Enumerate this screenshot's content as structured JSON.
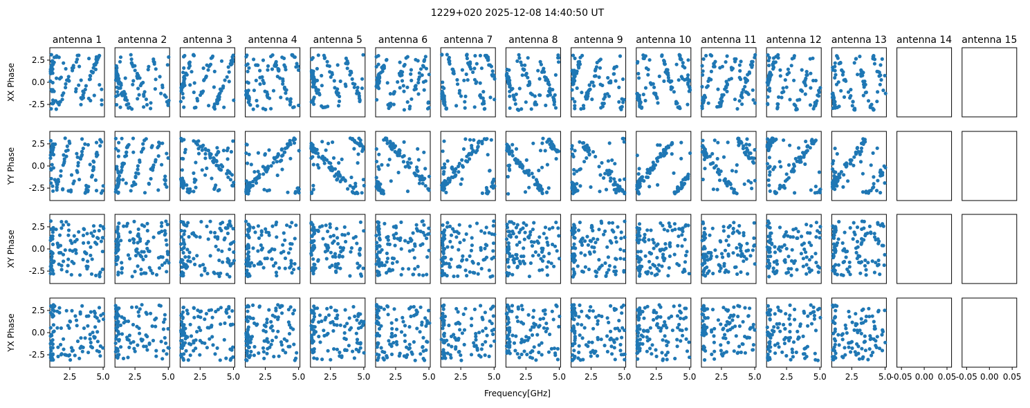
{
  "chart_data": {
    "type": "scatter",
    "title": "1229+020 2025-12-08 14:40:50 UT",
    "xlabel": "Frequency[GHz]",
    "marker_color": "#1f77b4",
    "columns": [
      "antenna 1",
      "antenna 2",
      "antenna 3",
      "antenna 4",
      "antenna 5",
      "antenna 6",
      "antenna 7",
      "antenna 8",
      "antenna 9",
      "antenna 10",
      "antenna 11",
      "antenna 12",
      "antenna 13",
      "antenna 14",
      "antenna 15"
    ],
    "rows": [
      "XX Phase",
      "YY Phase",
      "XY Phase",
      "YX Phase"
    ],
    "xlim": [
      1.0,
      5.1
    ],
    "ylim": [
      -3.9,
      3.9
    ],
    "x_ticks": [
      2.5,
      5.0
    ],
    "x_tick_labels": [
      "2.5",
      "5.0"
    ],
    "y_ticks": [
      2.5,
      0.0,
      -2.5
    ],
    "y_tick_labels": [
      "2.5",
      "0.0",
      "-2.5"
    ],
    "empty_panel_xlim": [
      -0.06,
      0.06
    ],
    "empty_panel_x_ticks": [
      -0.05,
      0.0,
      0.05
    ],
    "empty_panel_x_tick_labels": [
      "-0.05",
      "0.00",
      "0.05"
    ],
    "points_per_panel": 110,
    "phase_range": [
      -3.14159,
      3.14159
    ],
    "freq_range": [
      1.05,
      5.05
    ],
    "note_series": "Each populated panel shows phase (rad) vs frequency (GHz) for one antenna and one polarization product; antennas 14 and 15 have no data."
  }
}
